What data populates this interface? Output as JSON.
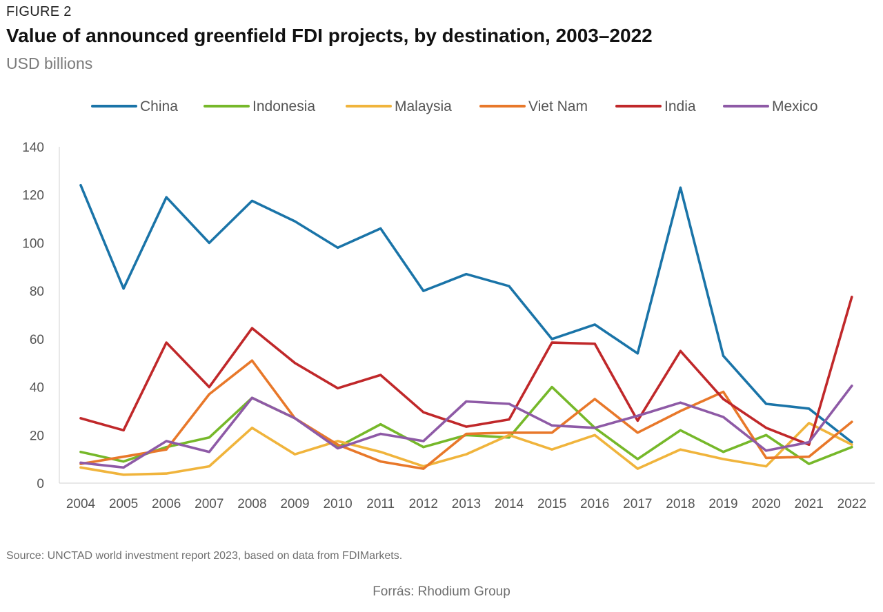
{
  "figure_label": "FIGURE 2",
  "title": "Value of announced greenfield FDI projects, by destination, 2003–2022",
  "subtitle": "USD billions",
  "source": "Source: UNCTAD world investment report 2023, based on data from FDIMarkets.",
  "credit": "Forrás: Rhodium Group",
  "chart_data": {
    "type": "line",
    "x": [
      "2004",
      "2005",
      "2006",
      "2007",
      "2008",
      "2009",
      "2010",
      "2011",
      "2012",
      "2013",
      "2014",
      "2015",
      "2016",
      "2017",
      "2018",
      "2019",
      "2020",
      "2021",
      "2022"
    ],
    "ylim": [
      0,
      140
    ],
    "yticks": [
      "0",
      "20",
      "40",
      "60",
      "80",
      "100",
      "120",
      "140"
    ],
    "grid": false,
    "legend_position": "top",
    "series": [
      {
        "name": "China",
        "color": "#1a74a8",
        "values": [
          124,
          81,
          119,
          100,
          117.5,
          109,
          98,
          106,
          80,
          87,
          82,
          60,
          66,
          54,
          123,
          53,
          33,
          31,
          17
        ]
      },
      {
        "name": "Indonesia",
        "color": "#76b82a",
        "values": [
          13,
          9,
          15,
          19,
          35.5,
          27,
          15,
          24.5,
          15,
          20,
          19,
          40,
          23,
          10,
          22,
          13,
          20,
          8,
          15
        ]
      },
      {
        "name": "Malaysia",
        "color": "#f0b43c",
        "values": [
          6.5,
          3.5,
          4,
          7,
          23,
          12,
          17.5,
          13,
          7,
          12,
          20,
          14,
          20,
          6,
          14,
          10,
          7,
          25,
          16
        ]
      },
      {
        "name": "Viet Nam",
        "color": "#e8782a",
        "values": [
          8,
          11,
          14,
          37,
          51,
          27,
          16,
          9,
          6,
          20.5,
          21,
          21,
          35,
          21,
          30,
          38,
          10.5,
          11,
          25.5
        ]
      },
      {
        "name": "India",
        "color": "#c0282a",
        "values": [
          27,
          22,
          58.5,
          40,
          64.5,
          50,
          39.5,
          45,
          29.5,
          23.5,
          26.5,
          58.5,
          58,
          26,
          55,
          35,
          23,
          16,
          77.5
        ]
      },
      {
        "name": "Mexico",
        "color": "#8e5aa6",
        "values": [
          8.5,
          6.5,
          17.5,
          13,
          35.5,
          27,
          14.5,
          20.5,
          17.5,
          34,
          33,
          24,
          23,
          28,
          33.5,
          27.5,
          13.5,
          17,
          40.5
        ]
      }
    ]
  }
}
